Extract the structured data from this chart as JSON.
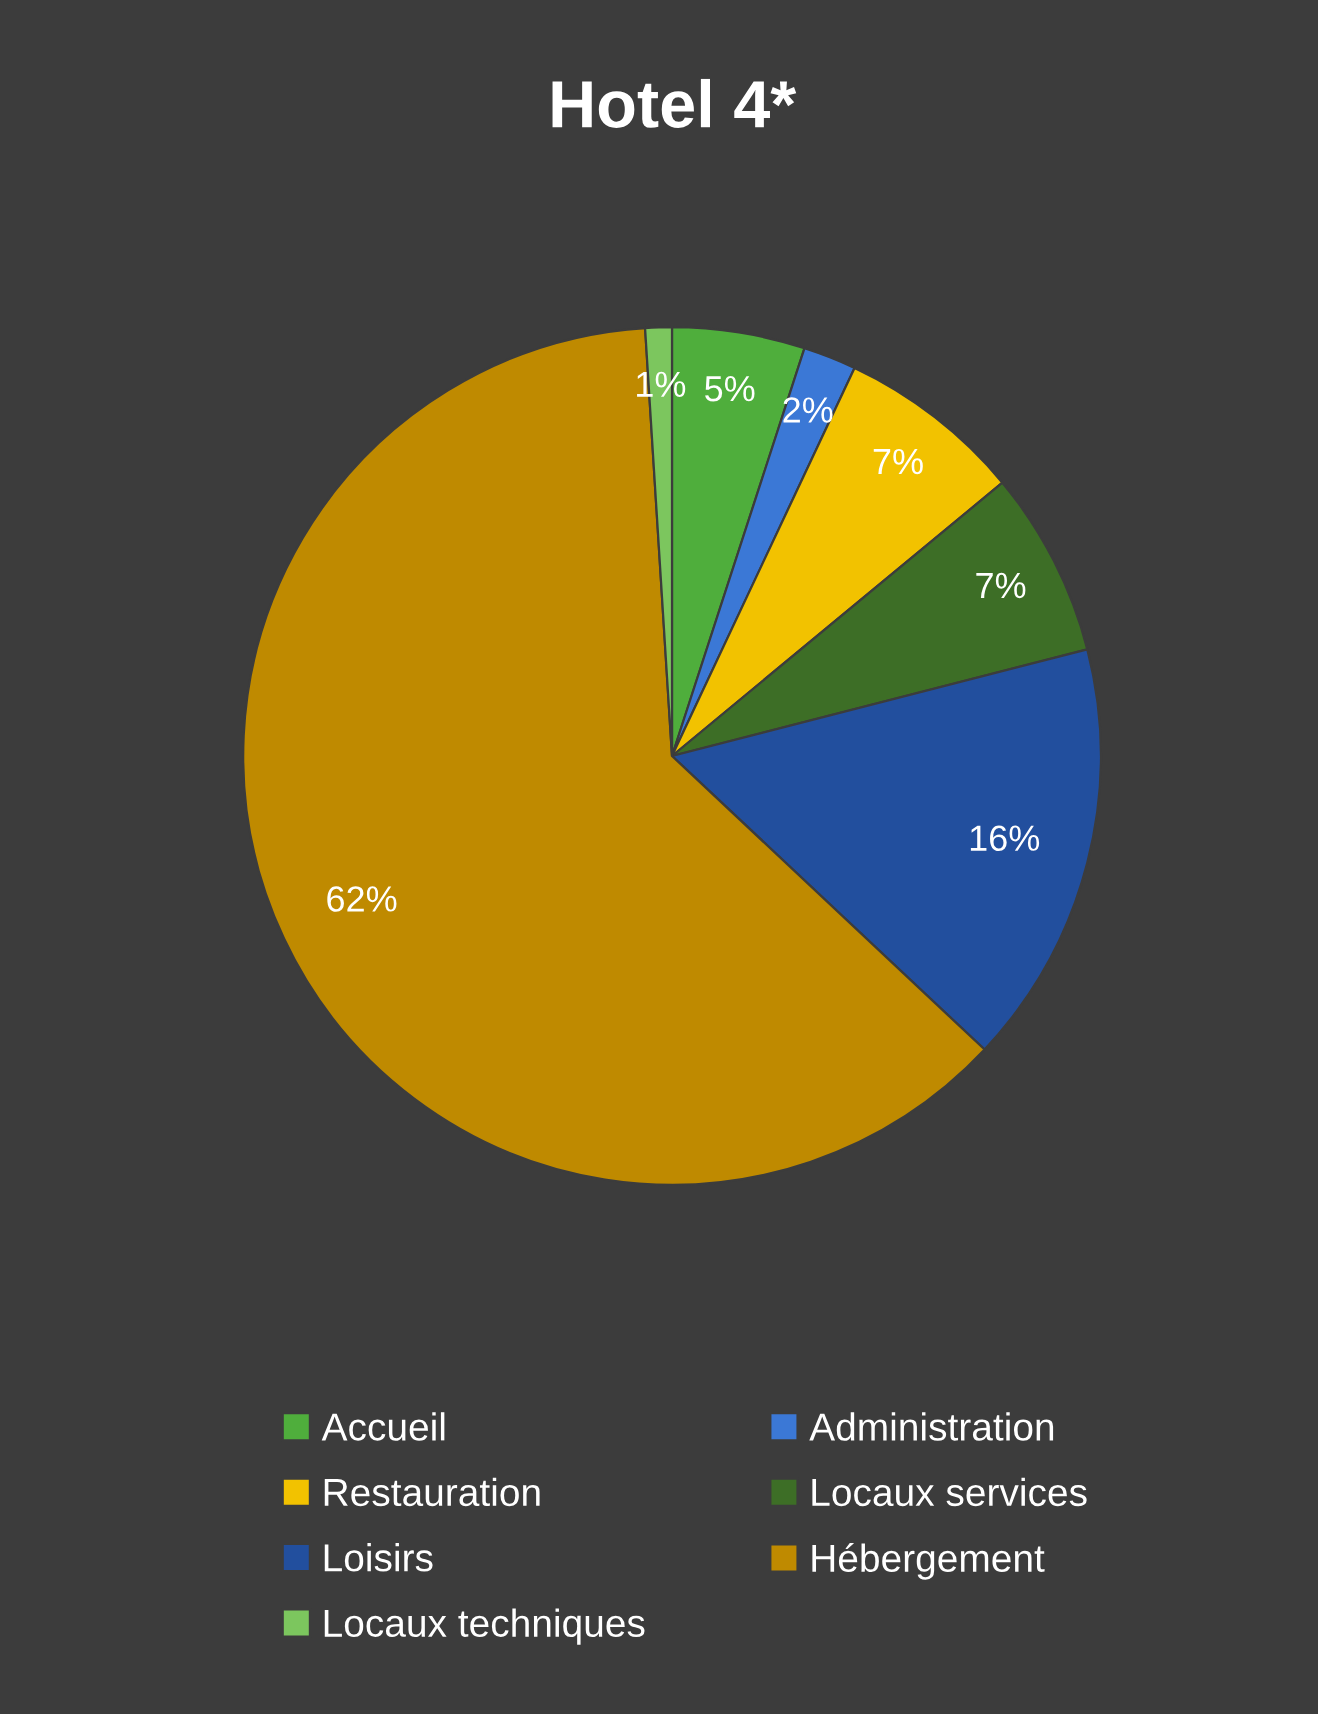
{
  "chart_data": {
    "type": "pie",
    "title": "Hotel 4*",
    "categories": [
      "Accueil",
      "Administration",
      "Restauration",
      "Locaux services",
      "Loisirs",
      "Hébergement",
      "Locaux techniques"
    ],
    "values": [
      5,
      2,
      7,
      7,
      16,
      62,
      1
    ],
    "colors": [
      "#4fae3c",
      "#3b78d6",
      "#f2c200",
      "#3d6e26",
      "#224f9e",
      "#bf8a00",
      "#7cc65e"
    ],
    "value_labels": [
      "5%",
      "2%",
      "7%",
      "7%",
      "16%",
      "62%",
      "1%"
    ],
    "legend": "bottom"
  }
}
